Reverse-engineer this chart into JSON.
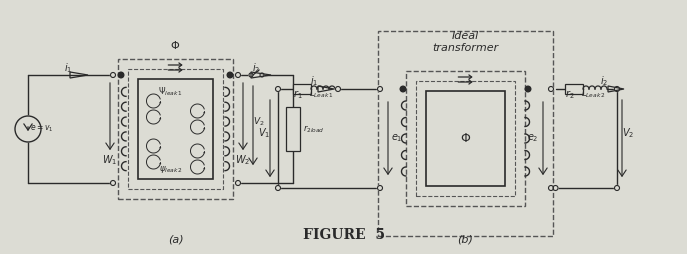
{
  "bg_color": "#dcdcd4",
  "line_color": "#2a2a2a",
  "dashed_color": "#555555",
  "fig_label": "FIGURE  5",
  "label_a": "(a)",
  "label_b": "(b)"
}
